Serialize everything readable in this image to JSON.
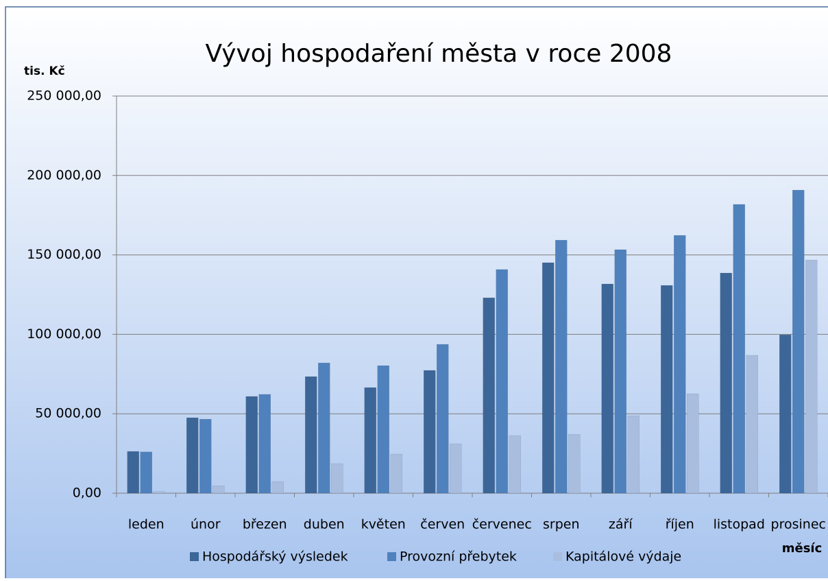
{
  "chart_data": {
    "type": "bar",
    "title": "Vývoj hospodaření města v roce 2008",
    "ylabel": "tis. Kč",
    "xlabel": "měsíc",
    "categories": [
      "leden",
      "únor",
      "březen",
      "duben",
      "květen",
      "červen",
      "červenec",
      "srpen",
      "září",
      "říjen",
      "listopad",
      "prosinec"
    ],
    "series": [
      {
        "name": "Hospodářský výsledek",
        "color": "#3d6698",
        "values": [
          26300,
          47500,
          60900,
          73400,
          66500,
          77300,
          123000,
          145100,
          131700,
          130800,
          138600,
          99700
        ]
      },
      {
        "name": "Provozní přebytek",
        "color": "#4f81bd",
        "values": [
          26000,
          46600,
          62200,
          82000,
          80300,
          93700,
          140800,
          159300,
          153300,
          162300,
          181800,
          190800
        ]
      },
      {
        "name": "Kapitálové výdaje",
        "color": "#a9bddf",
        "values": [
          1000,
          4700,
          7300,
          18600,
          24600,
          31100,
          36300,
          37100,
          48800,
          62600,
          86800,
          146800
        ]
      }
    ],
    "ylim": [
      0,
      250000
    ],
    "yticks": [
      {
        "value": 0,
        "label": "0,00"
      },
      {
        "value": 50000,
        "label": "50 000,00"
      },
      {
        "value": 100000,
        "label": "100 000,00"
      },
      {
        "value": 150000,
        "label": "150 000,00"
      },
      {
        "value": 200000,
        "label": "200 000,00"
      },
      {
        "value": 250000,
        "label": "250 000,00"
      }
    ],
    "grid": true,
    "legend": "bottom"
  }
}
